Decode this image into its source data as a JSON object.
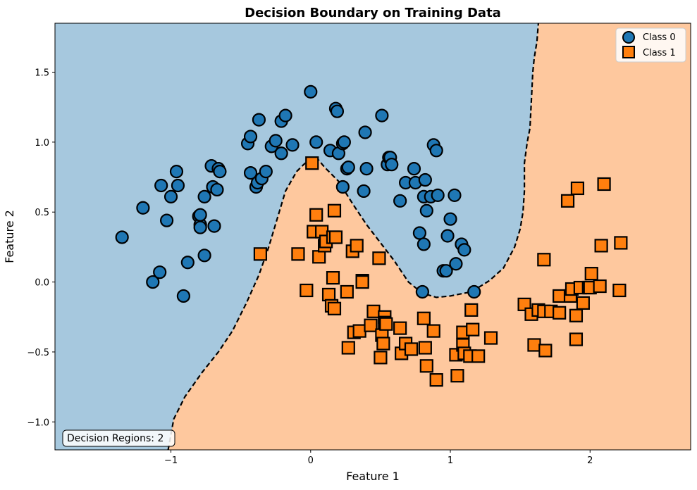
{
  "chart_data": {
    "type": "scatter",
    "title": "Decision Boundary on Training Data",
    "xlabel": "Feature 1",
    "ylabel": "Feature 2",
    "xlim": [
      -1.83,
      2.72
    ],
    "ylim": [
      -1.2,
      1.85
    ],
    "xticks": [
      -1,
      0,
      1,
      2
    ],
    "xtick_labels": [
      "−1",
      "0",
      "1",
      "2"
    ],
    "yticks": [
      -1.0,
      -0.5,
      0.0,
      0.5,
      1.0,
      1.5
    ],
    "ytick_labels": [
      "−1.0",
      "−0.5",
      "0.0",
      "0.5",
      "1.0",
      "1.5"
    ],
    "grid": false,
    "legend_position": "top-right",
    "annotation": "Decision Regions: 2",
    "colors": {
      "region_class0": "#a6c8de",
      "region_class1": "#fec89e",
      "class0_marker": "#1f77b4",
      "class1_marker": "#ff7f0e",
      "boundary": "#000000"
    },
    "boundary": [
      [
        -1.02,
        -1.2
      ],
      [
        -0.98,
        -0.98
      ],
      [
        -0.9,
        -0.82
      ],
      [
        -0.78,
        -0.65
      ],
      [
        -0.66,
        -0.5
      ],
      [
        -0.56,
        -0.35
      ],
      [
        -0.46,
        -0.15
      ],
      [
        -0.37,
        0.05
      ],
      [
        -0.3,
        0.25
      ],
      [
        -0.24,
        0.45
      ],
      [
        -0.18,
        0.65
      ],
      [
        -0.14,
        0.72
      ],
      [
        -0.1,
        0.79
      ],
      [
        -0.05,
        0.84
      ],
      [
        0.0,
        0.88
      ],
      [
        0.05,
        0.88
      ],
      [
        0.1,
        0.82
      ],
      [
        0.2,
        0.72
      ],
      [
        0.3,
        0.56
      ],
      [
        0.4,
        0.41
      ],
      [
        0.5,
        0.28
      ],
      [
        0.6,
        0.15
      ],
      [
        0.7,
        0.0
      ],
      [
        0.8,
        -0.08
      ],
      [
        0.9,
        -0.11
      ],
      [
        1.0,
        -0.1
      ],
      [
        1.15,
        -0.07
      ],
      [
        1.28,
        0.01
      ],
      [
        1.38,
        0.1
      ],
      [
        1.46,
        0.25
      ],
      [
        1.5,
        0.38
      ],
      [
        1.52,
        0.5
      ],
      [
        1.53,
        0.65
      ],
      [
        1.53,
        0.85
      ],
      [
        1.55,
        1.0
      ],
      [
        1.57,
        1.1
      ],
      [
        1.58,
        1.3
      ],
      [
        1.59,
        1.5
      ],
      [
        1.6,
        1.6
      ],
      [
        1.62,
        1.72
      ],
      [
        1.63,
        1.85
      ]
    ],
    "series": [
      {
        "name": "Class 0",
        "marker": "circle",
        "points": [
          [
            -1.35,
            0.32
          ],
          [
            -1.2,
            0.53
          ],
          [
            -1.13,
            0.0
          ],
          [
            -1.08,
            0.07
          ],
          [
            -1.07,
            0.69
          ],
          [
            -1.03,
            0.44
          ],
          [
            -1.0,
            0.61
          ],
          [
            -0.96,
            0.79
          ],
          [
            -0.95,
            0.69
          ],
          [
            -0.91,
            -0.1
          ],
          [
            -0.88,
            0.14
          ],
          [
            -0.8,
            0.47
          ],
          [
            -0.79,
            0.41
          ],
          [
            -0.79,
            0.39
          ],
          [
            -0.79,
            0.48
          ],
          [
            -0.76,
            0.19
          ],
          [
            -0.76,
            0.61
          ],
          [
            -0.71,
            0.83
          ],
          [
            -0.7,
            0.68
          ],
          [
            -0.69,
            0.4
          ],
          [
            -0.67,
            0.66
          ],
          [
            -0.66,
            0.81
          ],
          [
            -0.65,
            0.79
          ],
          [
            -0.45,
            0.99
          ],
          [
            -0.43,
            1.04
          ],
          [
            -0.43,
            0.78
          ],
          [
            -0.39,
            0.68
          ],
          [
            -0.38,
            0.71
          ],
          [
            -0.37,
            1.16
          ],
          [
            -0.35,
            0.74
          ],
          [
            -0.32,
            0.79
          ],
          [
            -0.28,
            0.97
          ],
          [
            -0.25,
            1.01
          ],
          [
            -0.21,
            1.15
          ],
          [
            -0.21,
            0.92
          ],
          [
            -0.18,
            1.19
          ],
          [
            -0.13,
            0.98
          ],
          [
            0.0,
            1.36
          ],
          [
            0.04,
            1.0
          ],
          [
            0.14,
            0.94
          ],
          [
            0.18,
            1.24
          ],
          [
            0.19,
            1.22
          ],
          [
            0.2,
            0.92
          ],
          [
            0.23,
            0.99
          ],
          [
            0.24,
            1.0
          ],
          [
            0.23,
            0.68
          ],
          [
            0.26,
            0.81
          ],
          [
            0.27,
            0.82
          ],
          [
            0.39,
            1.07
          ],
          [
            0.38,
            0.65
          ],
          [
            0.4,
            0.81
          ],
          [
            0.51,
            1.19
          ],
          [
            0.55,
            0.84
          ],
          [
            0.56,
            0.89
          ],
          [
            0.57,
            0.89
          ],
          [
            0.58,
            0.84
          ],
          [
            0.64,
            0.58
          ],
          [
            0.68,
            0.71
          ],
          [
            0.74,
            0.81
          ],
          [
            0.75,
            0.71
          ],
          [
            0.78,
            0.35
          ],
          [
            0.81,
            0.61
          ],
          [
            0.81,
            0.27
          ],
          [
            0.82,
            0.73
          ],
          [
            0.83,
            0.51
          ],
          [
            0.8,
            -0.07
          ],
          [
            0.86,
            0.61
          ],
          [
            0.88,
            0.98
          ],
          [
            0.9,
            0.94
          ],
          [
            0.91,
            0.62
          ],
          [
            0.95,
            0.08
          ],
          [
            0.97,
            0.08
          ],
          [
            0.98,
            0.33
          ],
          [
            1.0,
            0.45
          ],
          [
            1.03,
            0.62
          ],
          [
            1.04,
            0.13
          ],
          [
            1.08,
            0.27
          ],
          [
            1.1,
            0.23
          ],
          [
            1.17,
            -0.07
          ]
        ]
      },
      {
        "name": "Class 1",
        "marker": "square",
        "points": [
          [
            -0.36,
            0.2
          ],
          [
            -0.09,
            0.2
          ],
          [
            -0.03,
            -0.06
          ],
          [
            0.01,
            0.85
          ],
          [
            0.02,
            0.36
          ],
          [
            0.04,
            0.48
          ],
          [
            0.06,
            0.18
          ],
          [
            0.08,
            0.36
          ],
          [
            0.1,
            0.26
          ],
          [
            0.11,
            0.29
          ],
          [
            0.13,
            -0.09
          ],
          [
            0.15,
            -0.17
          ],
          [
            0.16,
            0.03
          ],
          [
            0.16,
            0.32
          ],
          [
            0.17,
            0.51
          ],
          [
            0.17,
            -0.19
          ],
          [
            0.18,
            0.32
          ],
          [
            0.26,
            -0.07
          ],
          [
            0.27,
            -0.47
          ],
          [
            0.3,
            0.22
          ],
          [
            0.31,
            -0.36
          ],
          [
            0.33,
            0.26
          ],
          [
            0.35,
            -0.35
          ],
          [
            0.37,
            0.01
          ],
          [
            0.37,
            0.0
          ],
          [
            0.43,
            -0.31
          ],
          [
            0.45,
            -0.21
          ],
          [
            0.49,
            0.17
          ],
          [
            0.5,
            -0.54
          ],
          [
            0.51,
            -0.38
          ],
          [
            0.52,
            -0.44
          ],
          [
            0.53,
            -0.25
          ],
          [
            0.53,
            -0.29
          ],
          [
            0.54,
            -0.3
          ],
          [
            0.64,
            -0.33
          ],
          [
            0.65,
            -0.51
          ],
          [
            0.68,
            -0.44
          ],
          [
            0.72,
            -0.48
          ],
          [
            0.81,
            -0.26
          ],
          [
            0.82,
            -0.47
          ],
          [
            0.83,
            -0.6
          ],
          [
            0.88,
            -0.35
          ],
          [
            0.9,
            -0.7
          ],
          [
            1.04,
            -0.52
          ],
          [
            1.05,
            -0.67
          ],
          [
            1.09,
            -0.36
          ],
          [
            1.09,
            -0.45
          ],
          [
            1.1,
            -0.51
          ],
          [
            1.14,
            -0.53
          ],
          [
            1.15,
            -0.2
          ],
          [
            1.16,
            -0.34
          ],
          [
            1.2,
            -0.53
          ],
          [
            1.29,
            -0.4
          ],
          [
            1.53,
            -0.16
          ],
          [
            1.58,
            -0.23
          ],
          [
            1.6,
            -0.45
          ],
          [
            1.63,
            -0.2
          ],
          [
            1.67,
            -0.21
          ],
          [
            1.67,
            0.16
          ],
          [
            1.68,
            -0.49
          ],
          [
            1.72,
            -0.21
          ],
          [
            1.78,
            -0.22
          ],
          [
            1.78,
            -0.1
          ],
          [
            1.84,
            0.58
          ],
          [
            1.86,
            -0.1
          ],
          [
            1.87,
            -0.05
          ],
          [
            1.9,
            -0.24
          ],
          [
            1.9,
            -0.41
          ],
          [
            1.91,
            0.67
          ],
          [
            1.93,
            -0.04
          ],
          [
            1.95,
            -0.15
          ],
          [
            1.99,
            -0.04
          ],
          [
            2.0,
            -0.04
          ],
          [
            2.01,
            0.06
          ],
          [
            2.07,
            -0.03
          ],
          [
            2.08,
            0.26
          ],
          [
            2.1,
            0.7
          ],
          [
            2.21,
            -0.06
          ],
          [
            2.22,
            0.28
          ]
        ]
      }
    ]
  }
}
